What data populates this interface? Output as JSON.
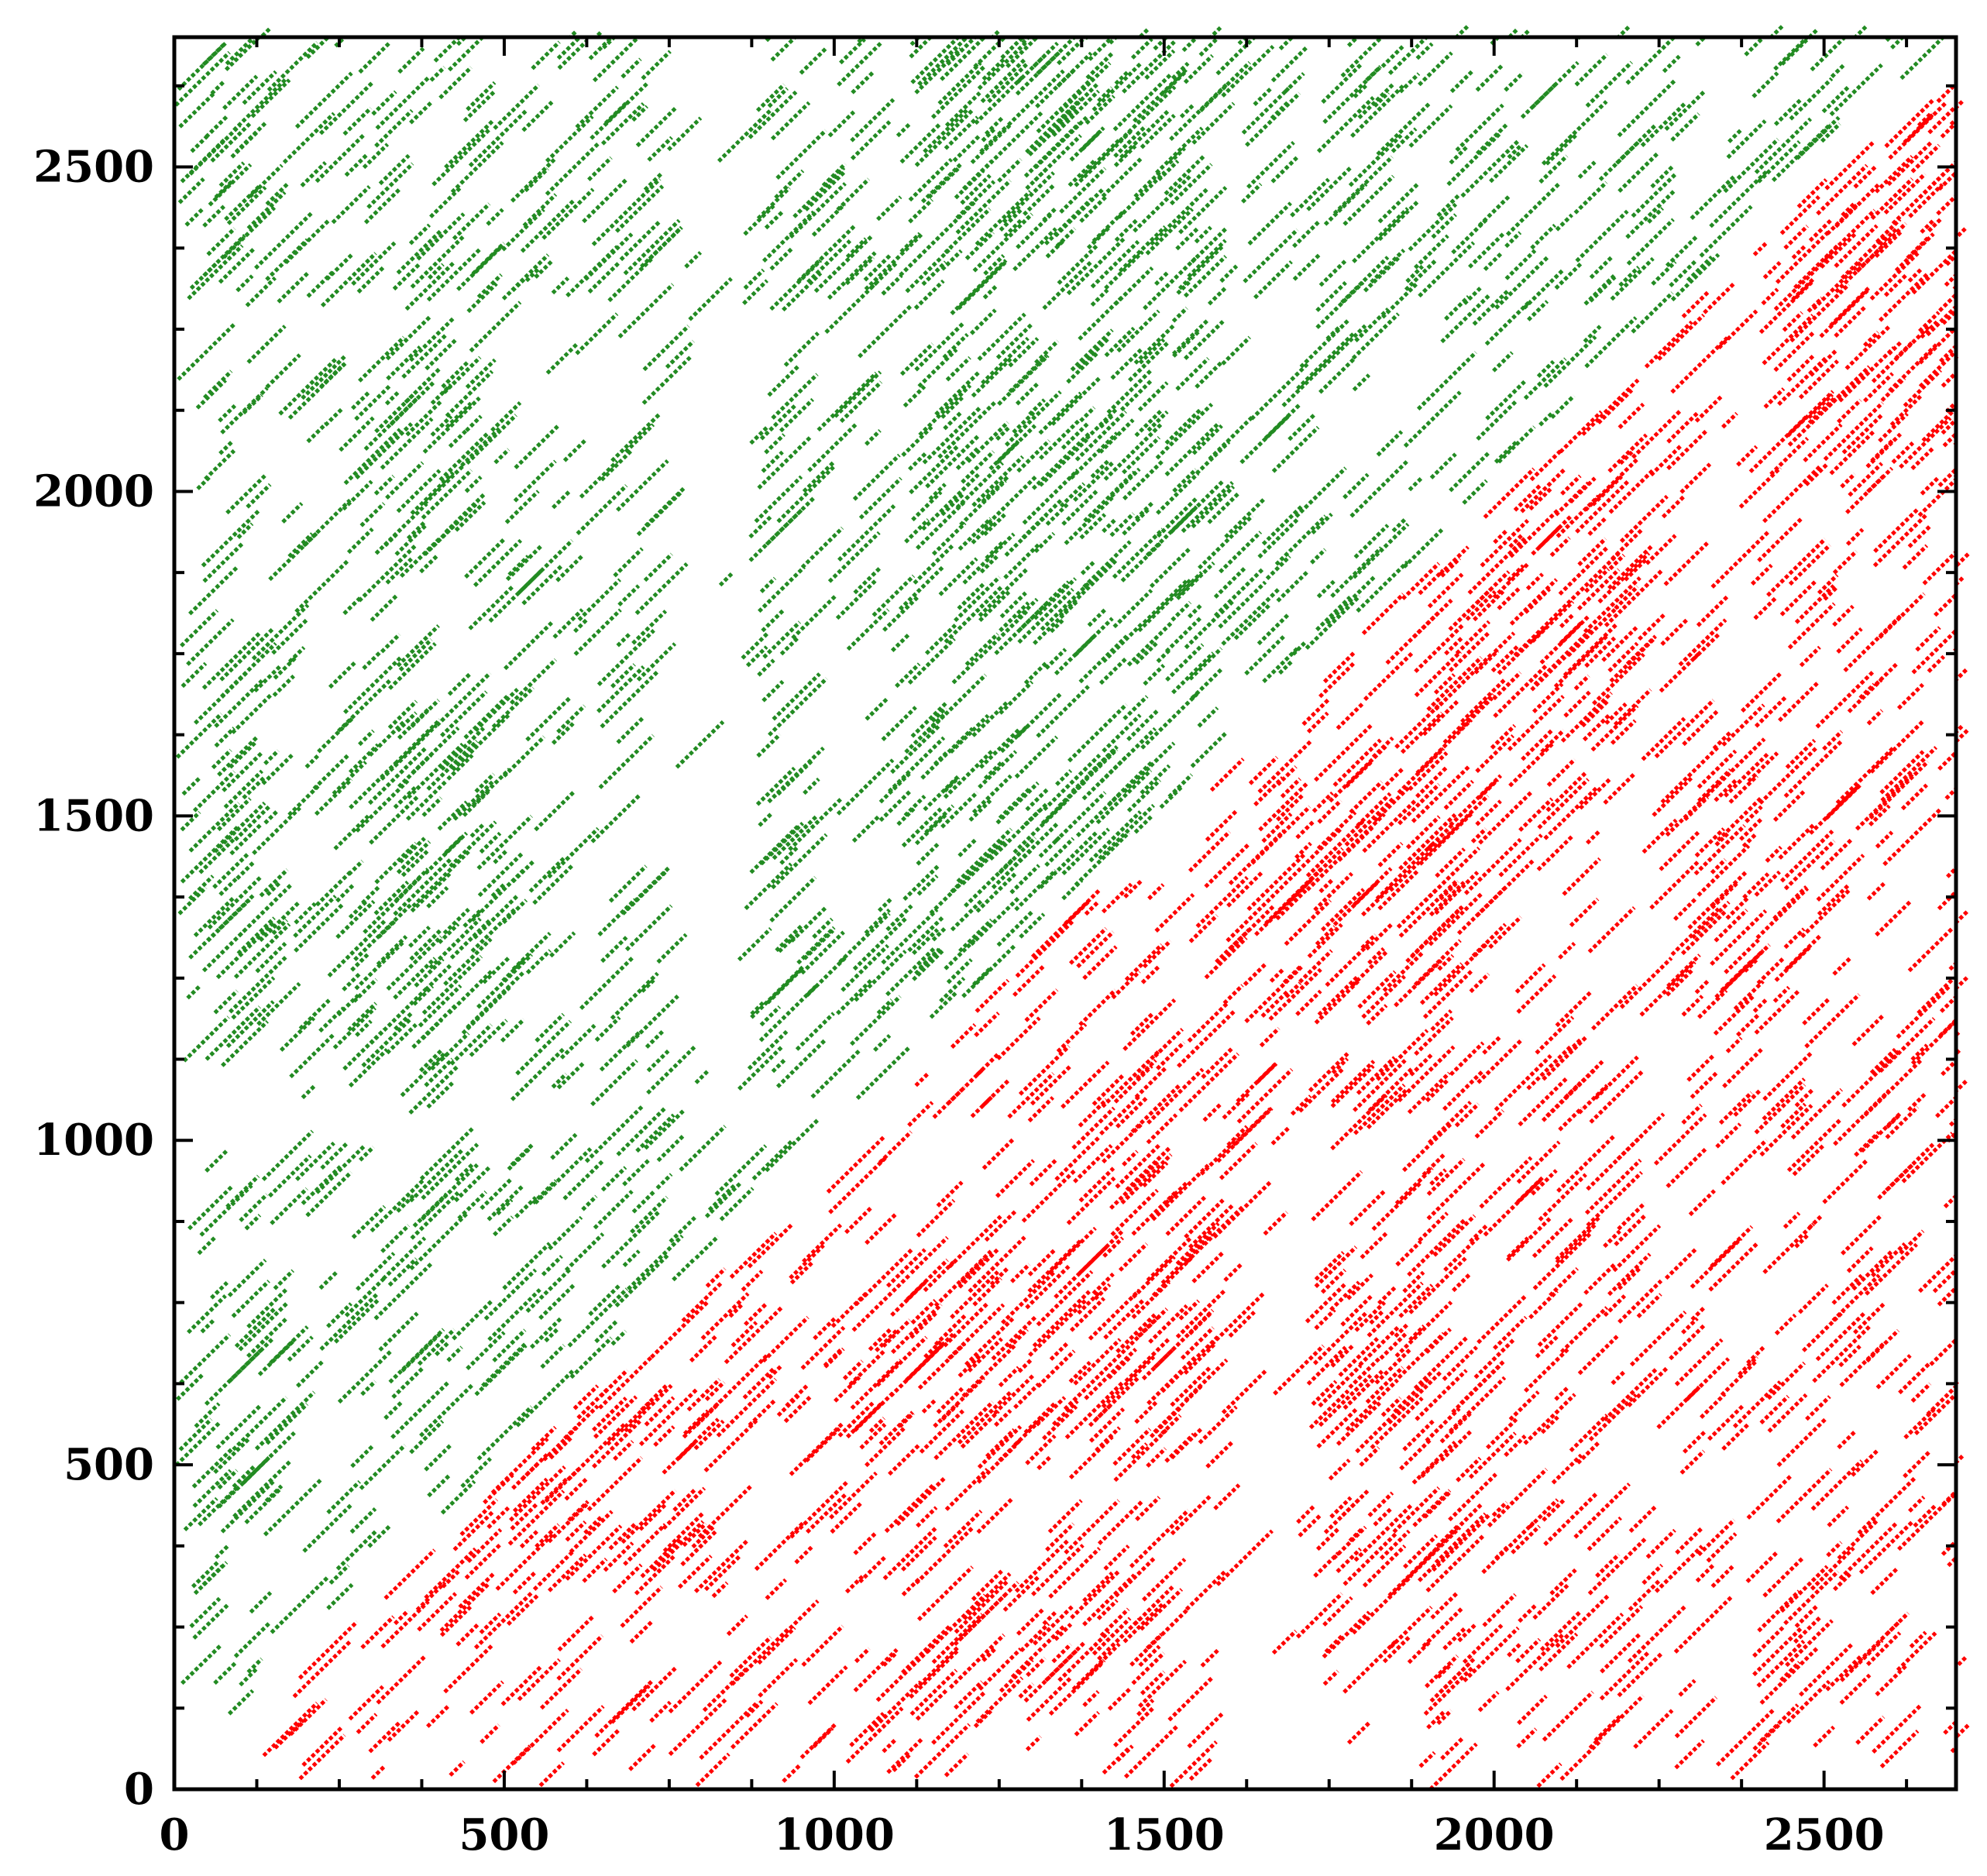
{
  "chart_data": {
    "type": "scatter",
    "title": "",
    "xlabel": "",
    "ylabel": "",
    "xlim": [
      0,
      2700
    ],
    "ylim": [
      0,
      2700
    ],
    "x_ticks": [
      0,
      500,
      1000,
      1500,
      2000,
      2500
    ],
    "y_ticks": [
      0,
      500,
      1000,
      1500,
      2000,
      2500
    ],
    "x_tick_labels": [
      "0",
      "500",
      "1000",
      "1500",
      "2000",
      "2500"
    ],
    "y_tick_labels": [
      "0",
      "500",
      "1000",
      "1500",
      "2000",
      "2500"
    ],
    "minor_tick_step": 125,
    "grid": false,
    "legend": "none",
    "series": [
      {
        "color": "#228b22",
        "region": "upper-left triangle (y > x)",
        "dense_blocks": [
          {
            "x": [
              0,
              120
            ],
            "y": [
              1250,
              1600
            ]
          },
          {
            "x": [
              240,
              470
            ],
            "y": [
              1100,
              1650
            ]
          },
          {
            "x": [
              260,
              450
            ],
            "y": [
              1850,
              2200
            ]
          },
          {
            "x": [
              1100,
              1550
            ],
            "y": [
              1250,
              1560
            ]
          },
          {
            "x": [
              1100,
              1550
            ],
            "y": [
              1900,
              2220
            ]
          },
          {
            "x": [
              1100,
              1550
            ],
            "y": [
              2300,
              2700
            ]
          },
          {
            "x": [
              1150,
              1550
            ],
            "y": [
              1700,
              1820
            ]
          },
          {
            "x": [
              0,
              120
            ],
            "y": [
              2300,
              2650
            ]
          },
          {
            "x": [
              0,
              100
            ],
            "y": [
              300,
              550
            ]
          }
        ],
        "bands": [
          {
            "axis": "y",
            "range": [
              2280,
              2330
            ]
          },
          {
            "axis": "y",
            "range": [
              860,
              920
            ]
          },
          {
            "axis": "x",
            "range": [
              870,
              920
            ]
          }
        ],
        "gaps": [
          {
            "x": [
              720,
              860
            ],
            "y": [
              1100,
              2700
            ]
          },
          {
            "x": [
              0,
              1700
            ],
            "y": [
              2220,
              2270
            ]
          },
          {
            "x": [
              0,
              1100
            ],
            "y": [
              1000,
              1060
            ]
          }
        ]
      },
      {
        "color": "#ff0000",
        "region": "lower-right triangle (y < x)",
        "dense_blocks": [
          {
            "x": [
              1650,
              1900
            ],
            "y": [
              1200,
              1560
            ]
          },
          {
            "x": [
              2150,
              2450
            ],
            "y": [
              1150,
              1550
            ]
          },
          {
            "x": [
              1000,
              1550
            ],
            "y": [
              500,
              800
            ]
          },
          {
            "x": [
              1650,
              1900
            ],
            "y": [
              300,
              800
            ]
          },
          {
            "x": [
              400,
              800
            ],
            "y": [
              300,
              600
            ]
          },
          {
            "x": [
              1100,
              1500
            ],
            "y": [
              100,
              300
            ]
          },
          {
            "x": [
              1900,
              2200
            ],
            "y": [
              1600,
              2000
            ]
          },
          {
            "x": [
              2400,
              2700
            ],
            "y": [
              2000,
              2500
            ]
          }
        ],
        "bands": [
          {
            "axis": "y",
            "range": [
              1020,
              1060
            ]
          },
          {
            "axis": "x",
            "range": [
              1880,
              1920
            ]
          }
        ],
        "gaps": [
          {
            "x": [
              1600,
              1700
            ],
            "y": [
              0,
              900
            ]
          },
          {
            "x": [
              2150,
              2250
            ],
            "y": [
              1000,
              1500
            ]
          },
          {
            "x": [
              600,
              2700
            ],
            "y": [
              440,
              470
            ]
          }
        ]
      }
    ]
  }
}
